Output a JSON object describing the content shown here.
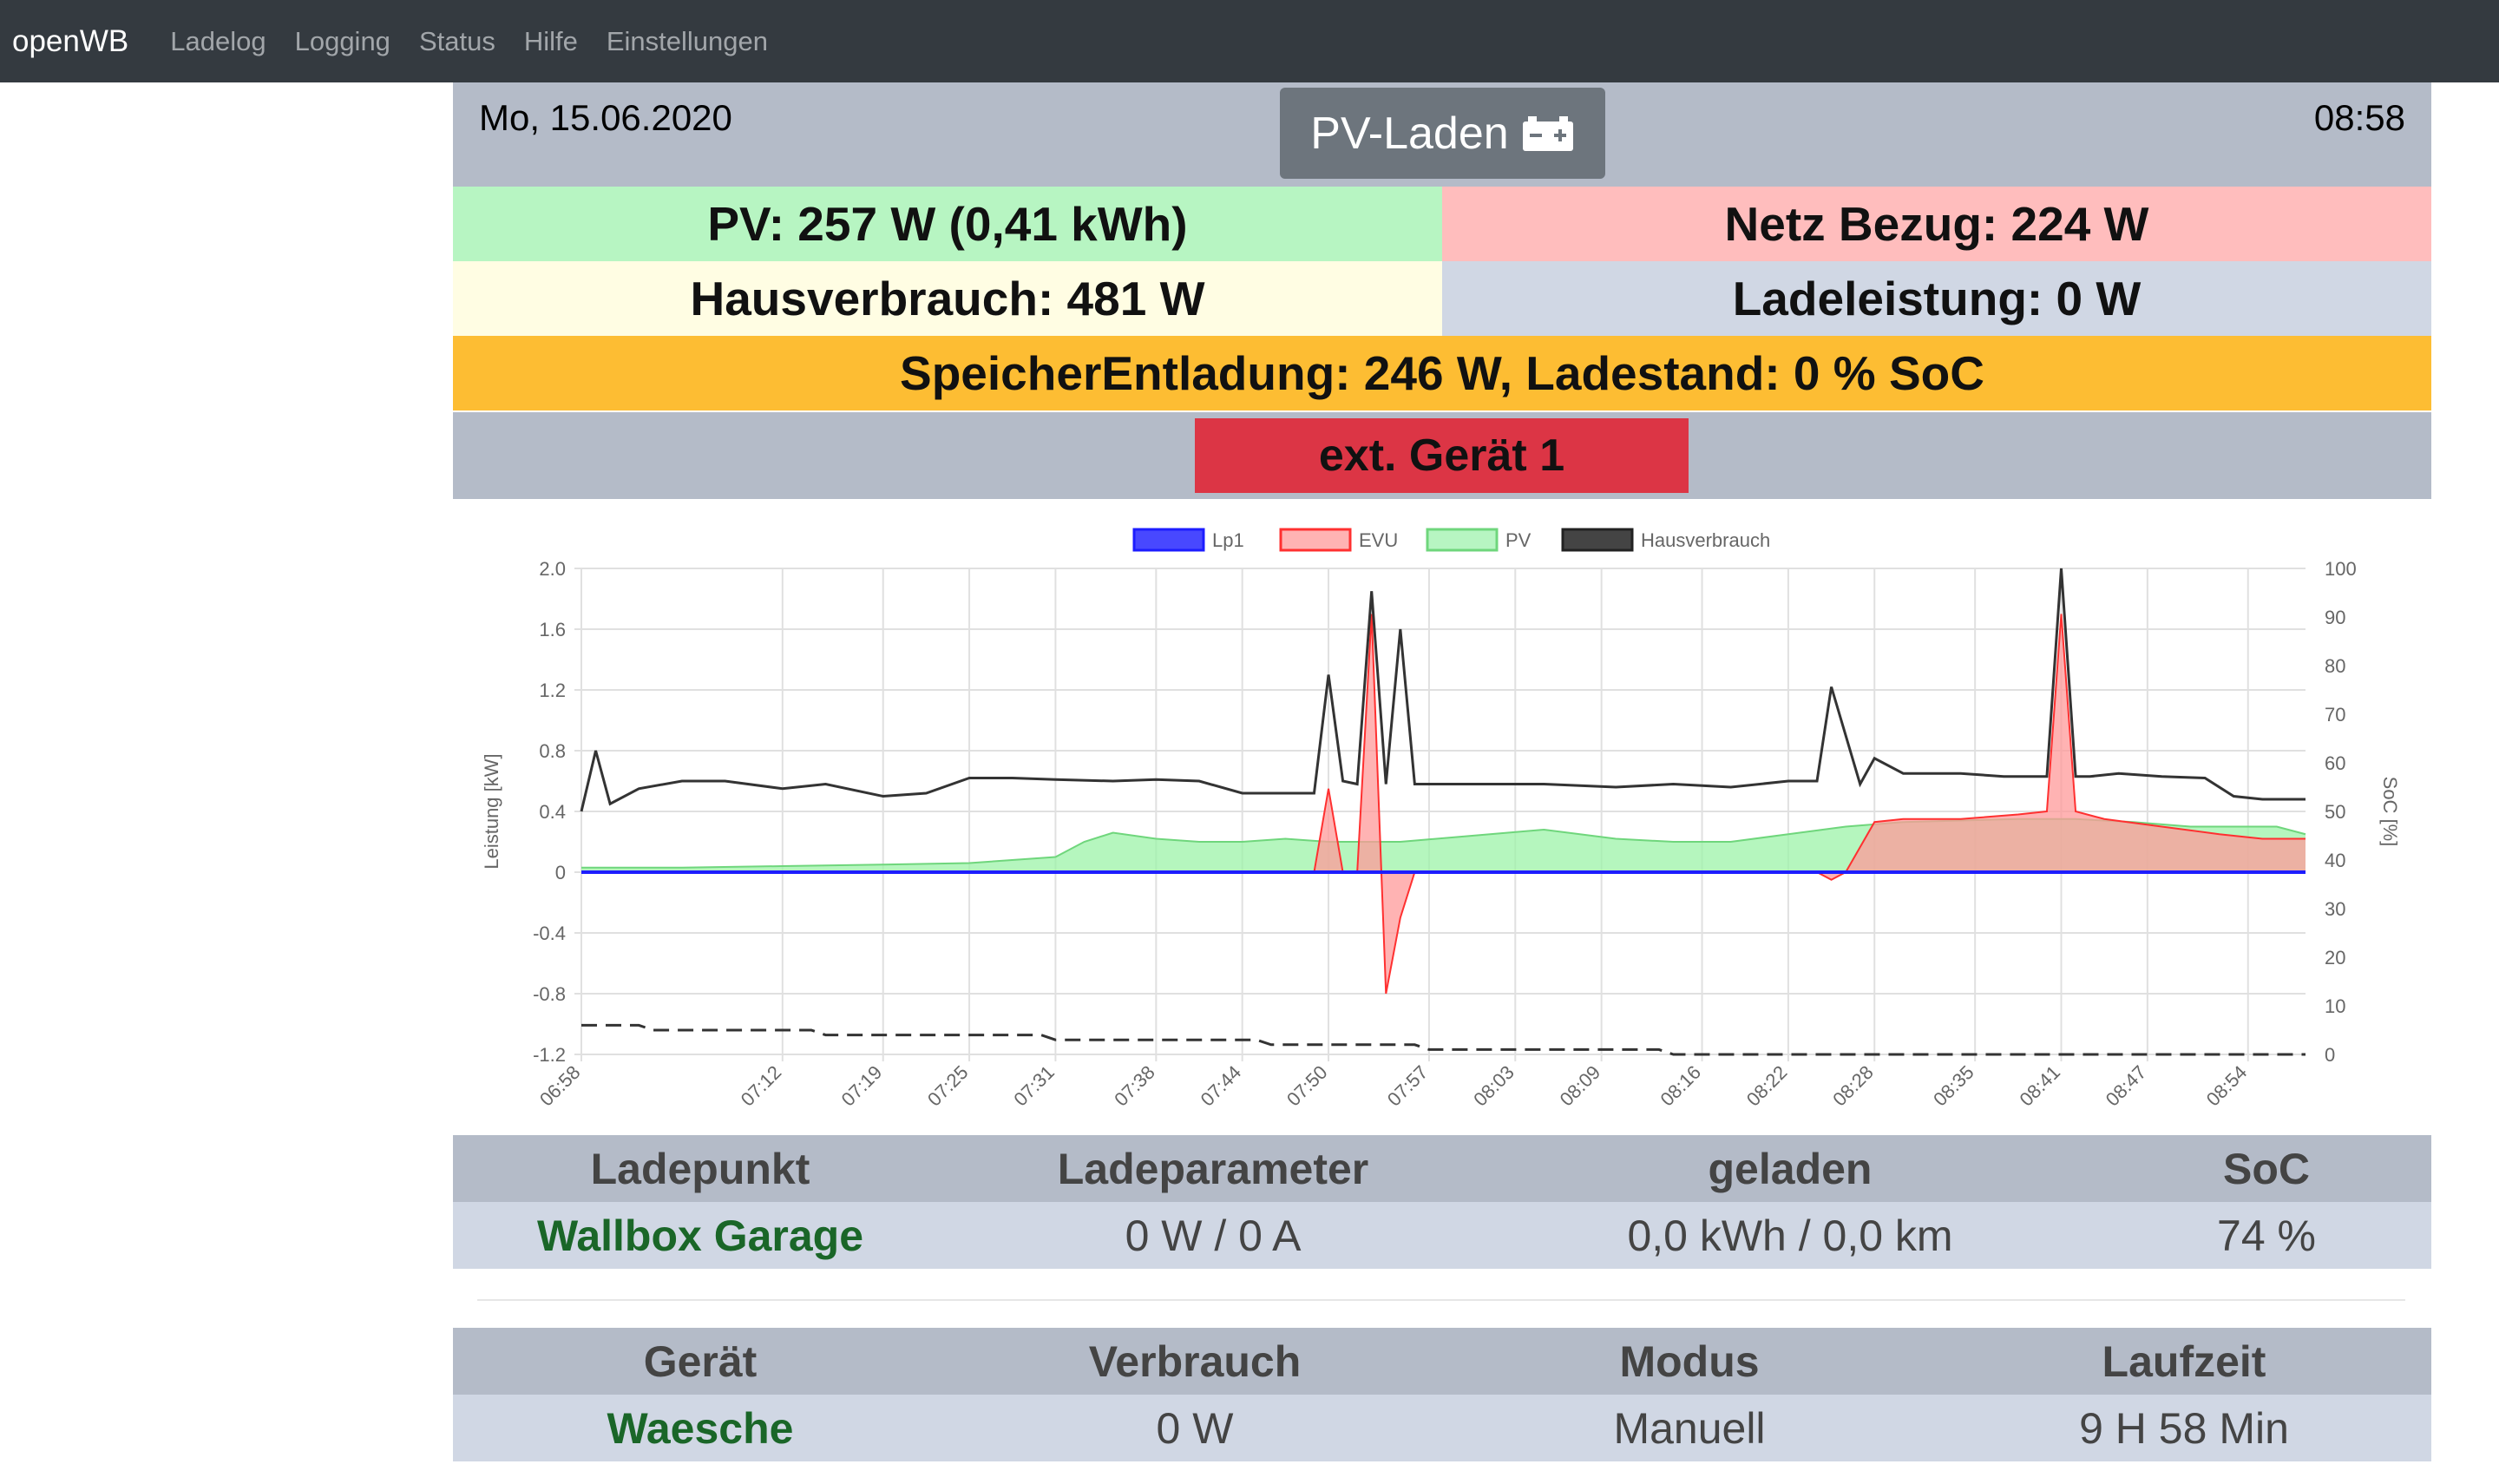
{
  "nav": {
    "brand": "openWB",
    "items": [
      "Ladelog",
      "Logging",
      "Status",
      "Hilfe",
      "Einstellungen"
    ]
  },
  "header": {
    "date": "Mo, 15.06.2020",
    "time": "08:58",
    "mode_label": "PV-Laden",
    "mode_icon": "battery-charging-icon"
  },
  "tiles": {
    "pv": "PV: 257 W (0,41 kWh)",
    "netz": "Netz Bezug: 224 W",
    "haus": "Hausverbrauch: 481 W",
    "lade": "Ladeleistung: 0 W",
    "speicher": "SpeicherEntladung: 246 W, Ladestand: 0 % SoC",
    "ext": "ext. Gerät 1"
  },
  "colors": {
    "pv_tile": "#b7f5c2",
    "netz_tile": "#ffbdbd",
    "haus_tile": "#fffde3",
    "lade_tile": "#d0d7e4",
    "speicher_tile": "#fdbd33",
    "ext_button": "#dc3545",
    "lp1": "#1d1dff",
    "evu": "#ff3030",
    "pv": "#9cf3a8",
    "hausverbrauch": "#333333"
  },
  "chart_data": {
    "type": "line",
    "legend": [
      "Lp1",
      "EVU",
      "PV",
      "Hausverbrauch"
    ],
    "legend_position": "top",
    "xlabel": "",
    "ylabel": "Leistung [kW]",
    "y2label": "SoC [%]",
    "ylim": [
      -1.2,
      2.0
    ],
    "y2lim": [
      0,
      100
    ],
    "yticks": [
      "2.0",
      "1.6",
      "1.2",
      "0.8",
      "0.4",
      "0",
      "-0.4",
      "-0.8",
      "-1.2"
    ],
    "y2ticks": [
      "100",
      "90",
      "80",
      "70",
      "60",
      "50",
      "40",
      "30",
      "20",
      "10",
      "0"
    ],
    "xticks": [
      "06:58",
      "07:12",
      "07:19",
      "07:25",
      "07:31",
      "07:38",
      "07:44",
      "07:50",
      "07:57",
      "08:03",
      "08:09",
      "08:16",
      "08:22",
      "08:28",
      "08:35",
      "08:41",
      "08:47",
      "08:54"
    ],
    "grid": true,
    "series": [
      {
        "name": "Hausverbrauch",
        "x": [
          "06:58",
          "06:59",
          "07:00",
          "07:02",
          "07:05",
          "07:08",
          "07:12",
          "07:15",
          "07:19",
          "07:22",
          "07:25",
          "07:28",
          "07:31",
          "07:35",
          "07:38",
          "07:41",
          "07:44",
          "07:47",
          "07:49",
          "07:50",
          "07:51",
          "07:52",
          "07:53",
          "07:54",
          "07:55",
          "07:56",
          "07:57",
          "08:00",
          "08:05",
          "08:10",
          "08:14",
          "08:18",
          "08:22",
          "08:24",
          "08:25",
          "08:27",
          "08:28",
          "08:30",
          "08:34",
          "08:37",
          "08:40",
          "08:41",
          "08:42",
          "08:43",
          "08:45",
          "08:48",
          "08:51",
          "08:53",
          "08:55",
          "08:58"
        ],
        "values": [
          0.4,
          0.8,
          0.45,
          0.55,
          0.6,
          0.6,
          0.55,
          0.58,
          0.5,
          0.52,
          0.62,
          0.62,
          0.61,
          0.6,
          0.61,
          0.6,
          0.52,
          0.52,
          0.52,
          1.3,
          0.6,
          0.58,
          1.85,
          0.58,
          1.6,
          0.58,
          0.58,
          0.58,
          0.58,
          0.56,
          0.58,
          0.56,
          0.6,
          0.6,
          1.22,
          0.58,
          0.75,
          0.65,
          0.65,
          0.63,
          0.63,
          2.0,
          0.63,
          0.63,
          0.65,
          0.63,
          0.62,
          0.5,
          0.48,
          0.48
        ]
      },
      {
        "name": "PV",
        "x": [
          "06:58",
          "07:05",
          "07:12",
          "07:19",
          "07:25",
          "07:31",
          "07:33",
          "07:35",
          "07:38",
          "07:41",
          "07:44",
          "07:47",
          "07:50",
          "07:55",
          "08:00",
          "08:05",
          "08:10",
          "08:14",
          "08:18",
          "08:22",
          "08:26",
          "08:30",
          "08:34",
          "08:38",
          "08:42",
          "08:46",
          "08:50",
          "08:54",
          "08:56",
          "08:58"
        ],
        "values": [
          0.03,
          0.03,
          0.04,
          0.05,
          0.06,
          0.1,
          0.2,
          0.26,
          0.22,
          0.2,
          0.2,
          0.22,
          0.2,
          0.2,
          0.24,
          0.28,
          0.22,
          0.2,
          0.2,
          0.25,
          0.3,
          0.33,
          0.34,
          0.35,
          0.35,
          0.33,
          0.3,
          0.3,
          0.3,
          0.25
        ]
      },
      {
        "name": "EVU",
        "x": [
          "06:58",
          "07:49",
          "07:50",
          "07:51",
          "07:52",
          "07:53",
          "07:54",
          "07:55",
          "07:56",
          "07:57",
          "08:24",
          "08:25",
          "08:26",
          "08:28",
          "08:30",
          "08:34",
          "08:38",
          "08:40",
          "08:41",
          "08:42",
          "08:44",
          "08:48",
          "08:52",
          "08:55",
          "08:58"
        ],
        "values": [
          0,
          0,
          0.55,
          0,
          0,
          1.7,
          -0.8,
          -0.3,
          0,
          0,
          0,
          -0.05,
          0,
          0.33,
          0.35,
          0.35,
          0.38,
          0.4,
          1.7,
          0.4,
          0.35,
          0.3,
          0.25,
          0.22,
          0.22
        ]
      },
      {
        "name": "Lp1",
        "x": [
          "06:58",
          "08:58"
        ],
        "values": [
          0,
          0
        ]
      },
      {
        "name": "SoC",
        "axis": "right",
        "x": [
          "06:58",
          "07:02",
          "07:03",
          "07:14",
          "07:15",
          "07:30",
          "07:31",
          "07:45",
          "07:46",
          "07:56",
          "07:57",
          "08:13",
          "08:14",
          "08:58"
        ],
        "values": [
          6,
          6,
          5,
          5,
          4,
          4,
          3,
          3,
          2,
          2,
          1,
          1,
          0,
          0
        ]
      }
    ]
  },
  "ladepunkt_table": {
    "headers": [
      "Ladepunkt",
      "Ladeparameter",
      "geladen",
      "SoC"
    ],
    "row": [
      "Wallbox Garage",
      "0 W / 0 A",
      "0,0 kWh / 0,0 km",
      "74 %"
    ]
  },
  "geraet_table": {
    "headers": [
      "Gerät",
      "Verbrauch",
      "Modus",
      "Laufzeit"
    ],
    "row": [
      "Waesche",
      "0 W",
      "Manuell",
      "9 H 58 Min"
    ]
  }
}
